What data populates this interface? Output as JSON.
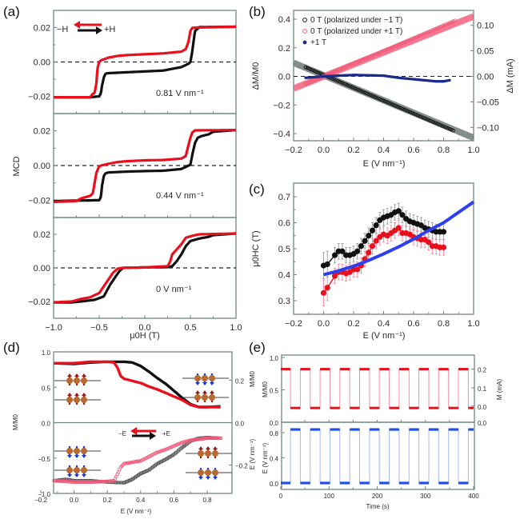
{
  "colors": {
    "black_series": "#111111",
    "red_series": "#e8101c",
    "pink_series": "#f05a78",
    "navy_series": "#1c2a8c",
    "blue_fit": "#2e3ff0",
    "gray_fit": "#6e7a78",
    "pink_fit": "#f4607c",
    "blue_step": "#2050e8",
    "axis": "#6f8585"
  },
  "chart_data": [
    {
      "id": "a",
      "panel_label": "(a)",
      "type": "line",
      "title": "",
      "xlabel": "μ0H (T)",
      "ylabel": "MCD",
      "xlim": [
        -1.0,
        1.0
      ],
      "xticks": [
        "−1.0",
        "−0.5",
        "0.0",
        "0.5",
        "1.0"
      ],
      "legend": {
        "placement": "top-left",
        "left_label": "−H",
        "right_label": "+H"
      },
      "subplots": [
        {
          "annotation": "0.81 V nm⁻¹",
          "ylim": [
            -0.03,
            0.03
          ],
          "yticks": [
            "0.02",
            "0.00",
            "−0.02"
          ],
          "series": [
            {
              "name": "−H sweep",
              "color": "red",
              "x": [
                -1.0,
                -0.6,
                -0.57,
                -0.55,
                -0.53,
                -0.52,
                -0.5,
                -0.48,
                -0.45,
                -0.4,
                -0.3,
                -0.2,
                0.0,
                0.2,
                0.4,
                0.45,
                0.48,
                0.5,
                0.52,
                0.55,
                1.0
              ],
              "y": [
                -0.0205,
                -0.0205,
                -0.0185,
                -0.018,
                -0.012,
                -0.004,
                0.0,
                0.001,
                0.0015,
                0.0025,
                0.0035,
                0.004,
                0.0045,
                0.005,
                0.006,
                0.0075,
                0.012,
                0.018,
                0.0198,
                0.02,
                0.0205
              ]
            },
            {
              "name": "+H sweep",
              "color": "black",
              "x": [
                -1.0,
                -0.6,
                -0.5,
                -0.48,
                -0.47,
                -0.45,
                -0.43,
                -0.4,
                -0.2,
                0.0,
                0.2,
                0.4,
                0.48,
                0.5,
                0.52,
                0.54,
                0.55,
                0.6,
                1.0
              ],
              "y": [
                -0.0205,
                -0.0205,
                -0.02,
                -0.018,
                -0.014,
                -0.009,
                -0.0068,
                -0.0065,
                -0.006,
                -0.0055,
                -0.005,
                -0.003,
                -0.001,
                0.0,
                0.006,
                0.014,
                0.018,
                0.0203,
                0.0205
              ]
            }
          ]
        },
        {
          "annotation": "0.44 V nm⁻¹",
          "ylim": [
            -0.03,
            0.03
          ],
          "yticks": [
            "0.02",
            "0.00",
            "−0.02"
          ],
          "series": [
            {
              "name": "−H sweep",
              "color": "red",
              "x": [
                -1.0,
                -0.75,
                -0.7,
                -0.6,
                -0.57,
                -0.55,
                -0.53,
                -0.5,
                -0.48,
                -0.4,
                -0.3,
                -0.2,
                0.0,
                0.2,
                0.4,
                0.45,
                0.47,
                0.5,
                0.52,
                0.55,
                1.0
              ],
              "y": [
                -0.021,
                -0.0205,
                -0.019,
                -0.0175,
                -0.016,
                -0.01,
                -0.004,
                -0.0005,
                0.0,
                0.001,
                0.002,
                0.0025,
                0.003,
                0.0032,
                0.004,
                0.0055,
                0.01,
                0.016,
                0.019,
                0.0203,
                0.0205
              ]
            },
            {
              "name": "+H sweep",
              "color": "black",
              "x": [
                -1.0,
                -0.5,
                -0.48,
                -0.47,
                -0.45,
                -0.43,
                -0.4,
                -0.2,
                0.0,
                0.2,
                0.4,
                0.5,
                0.52,
                0.55,
                0.58,
                0.62,
                0.7,
                0.75,
                1.0
              ],
              "y": [
                -0.0205,
                -0.02,
                -0.018,
                -0.012,
                -0.006,
                -0.0045,
                -0.004,
                -0.0035,
                -0.0032,
                -0.003,
                -0.002,
                0.0005,
                0.006,
                0.013,
                0.016,
                0.017,
                0.018,
                0.0195,
                0.0205
              ]
            }
          ]
        },
        {
          "annotation": "0 V nm⁻¹",
          "ylim": [
            -0.03,
            0.03
          ],
          "yticks": [
            "0.02",
            "0.00",
            "−0.02"
          ],
          "series": [
            {
              "name": "−H sweep",
              "color": "red",
              "x": [
                -1.0,
                -0.8,
                -0.7,
                -0.6,
                -0.5,
                -0.45,
                -0.4,
                -0.35,
                -0.3,
                -0.25,
                0.0,
                0.25,
                0.28,
                0.3,
                0.35,
                0.4,
                0.45,
                0.5,
                0.55,
                0.6,
                1.0
              ],
              "y": [
                -0.0205,
                -0.02,
                -0.0185,
                -0.0175,
                -0.015,
                -0.011,
                -0.007,
                -0.003,
                -0.0005,
                0.0,
                0.0003,
                0.001,
                0.004,
                0.008,
                0.011,
                0.014,
                0.018,
                0.0188,
                0.0195,
                0.02,
                0.0205
              ]
            },
            {
              "name": "+H sweep",
              "color": "black",
              "x": [
                -1.0,
                -0.8,
                -0.7,
                -0.55,
                -0.45,
                -0.42,
                -0.38,
                -0.33,
                -0.28,
                -0.24,
                0.0,
                0.25,
                0.3,
                0.35,
                0.4,
                0.45,
                0.5,
                0.6,
                0.7,
                0.75,
                1.0
              ],
              "y": [
                -0.0205,
                -0.0205,
                -0.02,
                -0.019,
                -0.017,
                -0.014,
                -0.01,
                -0.006,
                -0.002,
                0.0,
                0.0003,
                0.0005,
                0.001,
                0.004,
                0.008,
                0.013,
                0.016,
                0.0175,
                0.0185,
                0.0195,
                0.0205
              ]
            }
          ]
        }
      ]
    },
    {
      "id": "b",
      "panel_label": "(b)",
      "type": "scatter",
      "xlabel": "E (V nm⁻¹)",
      "ylabel": "ΔM/M0",
      "ylabel_right": "ΔM (mA)",
      "xlim": [
        -0.2,
        1.0
      ],
      "ylim": [
        -0.45,
        0.45
      ],
      "ylim_right": [
        -0.125,
        0.125
      ],
      "xticks": [
        "−0.2",
        "0.0",
        "0.2",
        "0.4",
        "0.6",
        "0.8",
        "1.0"
      ],
      "yticks": [
        "0.4",
        "0.2",
        "0.0",
        "−0.2",
        "−0.4"
      ],
      "yticks_right": [
        "0.10",
        "0.05",
        "0.00",
        "−0.05",
        "−0.10"
      ],
      "legend": {
        "placement": "top-left",
        "entries": [
          "0 T (polarized under −1 T)",
          "0 T (polarized under +1 T)",
          "+1 T"
        ]
      },
      "series": [
        {
          "name": "0 T (polarized under −1 T)",
          "color": "black",
          "marker": "open-circle",
          "x_range": [
            -0.12,
            0.87
          ],
          "slope": -0.45,
          "intercept": 0.01
        },
        {
          "name": "0 T (polarized under +1 T)",
          "color": "pink",
          "marker": "open-circle",
          "x_range": [
            -0.12,
            0.88
          ],
          "slope": 0.445,
          "intercept": 0.0
        },
        {
          "name": "+1 T",
          "color": "navy",
          "marker": "filled-circle",
          "x": [
            -0.12,
            0.0,
            0.2,
            0.4,
            0.5,
            0.6,
            0.7,
            0.75,
            0.8,
            0.85
          ],
          "y": [
            -0.01,
            0.0,
            0.01,
            0.005,
            -0.01,
            -0.02,
            -0.03,
            -0.035,
            -0.035,
            -0.025
          ]
        },
        {
          "name": "linear fit (−1 T)",
          "color": "gray",
          "type": "line",
          "x": [
            -0.2,
            1.0
          ],
          "y": [
            0.095,
            -0.43
          ]
        },
        {
          "name": "linear fit (+1 T)",
          "color": "pinkfit",
          "type": "line",
          "x": [
            -0.2,
            1.0
          ],
          "y": [
            -0.085,
            0.42
          ]
        }
      ]
    },
    {
      "id": "c",
      "panel_label": "(c)",
      "type": "line",
      "xlabel": "E (V nm⁻¹)",
      "ylabel": "μ0HC (T)",
      "xlim": [
        -0.2,
        1.0
      ],
      "ylim": [
        0.25,
        0.75
      ],
      "xticks": [
        "−0.2",
        "0.0",
        "0.2",
        "0.4",
        "0.6",
        "0.8",
        "1.0"
      ],
      "yticks": [
        "0.7",
        "0.6",
        "0.5",
        "0.4",
        "0.3"
      ],
      "series": [
        {
          "name": "black",
          "color": "black",
          "x": [
            0.0,
            0.025,
            0.075,
            0.1,
            0.125,
            0.15,
            0.175,
            0.2,
            0.225,
            0.25,
            0.275,
            0.3,
            0.325,
            0.35,
            0.375,
            0.4,
            0.425,
            0.45,
            0.475,
            0.5,
            0.525,
            0.55,
            0.575,
            0.6,
            0.625,
            0.65,
            0.675,
            0.7,
            0.725,
            0.75,
            0.775,
            0.8
          ],
          "y": [
            0.435,
            0.44,
            0.475,
            0.49,
            0.49,
            0.475,
            0.475,
            0.48,
            0.49,
            0.51,
            0.53,
            0.55,
            0.57,
            0.59,
            0.61,
            0.62,
            0.625,
            0.63,
            0.64,
            0.645,
            0.63,
            0.615,
            0.605,
            0.6,
            0.595,
            0.59,
            0.58,
            0.575,
            0.57,
            0.565,
            0.565,
            0.565
          ],
          "error": 0.03
        },
        {
          "name": "red",
          "color": "red",
          "x": [
            0.0,
            0.025,
            0.075,
            0.1,
            0.125,
            0.15,
            0.175,
            0.2,
            0.225,
            0.25,
            0.275,
            0.3,
            0.325,
            0.35,
            0.375,
            0.4,
            0.425,
            0.45,
            0.475,
            0.5,
            0.525,
            0.55,
            0.575,
            0.6,
            0.625,
            0.65,
            0.675,
            0.7,
            0.725,
            0.75,
            0.775,
            0.8
          ],
          "y": [
            0.33,
            0.35,
            0.395,
            0.41,
            0.41,
            0.405,
            0.41,
            0.42,
            0.42,
            0.435,
            0.46,
            0.485,
            0.51,
            0.53,
            0.545,
            0.555,
            0.55,
            0.56,
            0.57,
            0.58,
            0.56,
            0.56,
            0.555,
            0.545,
            0.54,
            0.535,
            0.535,
            0.525,
            0.51,
            0.51,
            0.505,
            0.505
          ],
          "error": 0.03
        },
        {
          "name": "fit",
          "color": "blue",
          "type": "curve",
          "x": [
            0.0,
            0.1,
            0.2,
            0.3,
            0.4,
            0.5,
            0.6,
            0.7,
            0.8,
            0.9,
            1.0
          ],
          "y": [
            0.4,
            0.415,
            0.433,
            0.455,
            0.48,
            0.507,
            0.537,
            0.57,
            0.6,
            0.64,
            0.68
          ]
        }
      ]
    },
    {
      "id": "d",
      "panel_label": "(d)",
      "type": "scatter",
      "xlabel": "E (V nm⁻¹)",
      "ylabel": "M/M0",
      "ylabel_right_top": "M/M0",
      "ylabel_right_bottom": "E (V nm⁻¹)",
      "xlim": [
        -0.2,
        0.95
      ],
      "ylim": [
        -1.0,
        1.0
      ],
      "xticks": [
        "−0.2",
        "0.0",
        "0.2",
        "0.4",
        "0.6",
        "0.8"
      ],
      "yticks": [
        "1.0",
        "0.5",
        "0.0",
        "−0.5",
        "−1.0"
      ],
      "yticks_right": [
        "0.2",
        "0.0",
        "−0.2"
      ],
      "legend": {
        "placement": "center",
        "left_label": "−E",
        "right_label": "+E"
      },
      "series": [
        {
          "name": "top black",
          "color": "black",
          "x": [
            -0.12,
            0.0,
            0.1,
            0.2,
            0.3,
            0.35,
            0.4,
            0.45,
            0.5,
            0.55,
            0.6,
            0.65,
            0.7,
            0.75,
            0.8,
            0.88
          ],
          "y": [
            0.84,
            0.83,
            0.85,
            0.86,
            0.86,
            0.85,
            0.8,
            0.72,
            0.63,
            0.55,
            0.45,
            0.35,
            0.26,
            0.22,
            0.22,
            0.23
          ]
        },
        {
          "name": "top red",
          "color": "red",
          "x": [
            -0.12,
            0.0,
            0.1,
            0.2,
            0.24,
            0.26,
            0.28,
            0.3,
            0.35,
            0.4,
            0.45,
            0.5,
            0.55,
            0.6,
            0.65,
            0.7,
            0.75,
            0.88
          ],
          "y": [
            0.84,
            0.84,
            0.86,
            0.86,
            0.85,
            0.78,
            0.66,
            0.62,
            0.59,
            0.56,
            0.51,
            0.47,
            0.42,
            0.37,
            0.32,
            0.25,
            0.22,
            0.22
          ]
        },
        {
          "name": "bottom black",
          "color": "gray",
          "marker": "open-square",
          "x": [
            -0.12,
            -0.05,
            0.0,
            0.1,
            0.2,
            0.3,
            0.35,
            0.4,
            0.45,
            0.5,
            0.55,
            0.6,
            0.65,
            0.7,
            0.75,
            0.8,
            0.88
          ],
          "y": [
            -0.82,
            -0.8,
            -0.82,
            -0.82,
            -0.84,
            -0.85,
            -0.8,
            -0.72,
            -0.67,
            -0.58,
            -0.52,
            -0.45,
            -0.35,
            -0.26,
            -0.22,
            -0.21,
            -0.22
          ]
        },
        {
          "name": "bottom pink",
          "color": "pink",
          "marker": "open-circle",
          "x": [
            -0.12,
            0.0,
            0.1,
            0.2,
            0.24,
            0.26,
            0.28,
            0.3,
            0.35,
            0.4,
            0.45,
            0.5,
            0.55,
            0.6,
            0.65,
            0.7,
            0.8,
            0.88
          ],
          "y": [
            -0.82,
            -0.84,
            -0.84,
            -0.83,
            -0.82,
            -0.73,
            -0.63,
            -0.58,
            -0.56,
            -0.54,
            -0.48,
            -0.42,
            -0.38,
            -0.33,
            -0.28,
            -0.25,
            -0.22,
            -0.22
          ]
        }
      ]
    },
    {
      "id": "e",
      "panel_label": "(e)",
      "type": "line",
      "xlabel": "Time (s)",
      "xlim": [
        0,
        400
      ],
      "xticks": [
        "0",
        "100",
        "200",
        "300",
        "400"
      ],
      "subplots": [
        {
          "ylabel": "M/M0",
          "ylabel_right": "M (mA)",
          "ylim": [
            0.0,
            1.0
          ],
          "yticks": [
            "1.0",
            "0.5",
            "0.0"
          ],
          "yticks_right": [
            "0.2",
            "0.1",
            "0.0"
          ],
          "high": 0.82,
          "low": 0.22,
          "color": "red"
        },
        {
          "ylabel": "E (V nm⁻¹)",
          "ylabel_right_top": "0.0",
          "ylim": [
            -0.1,
            0.9
          ],
          "yticks": [
            "0.8",
            "0.4",
            "0.0"
          ],
          "high": 0.85,
          "low": 0.0,
          "color": "blue"
        }
      ],
      "period_s": 41,
      "first_switch_s": 20,
      "half_period_s": 20.5
    }
  ]
}
